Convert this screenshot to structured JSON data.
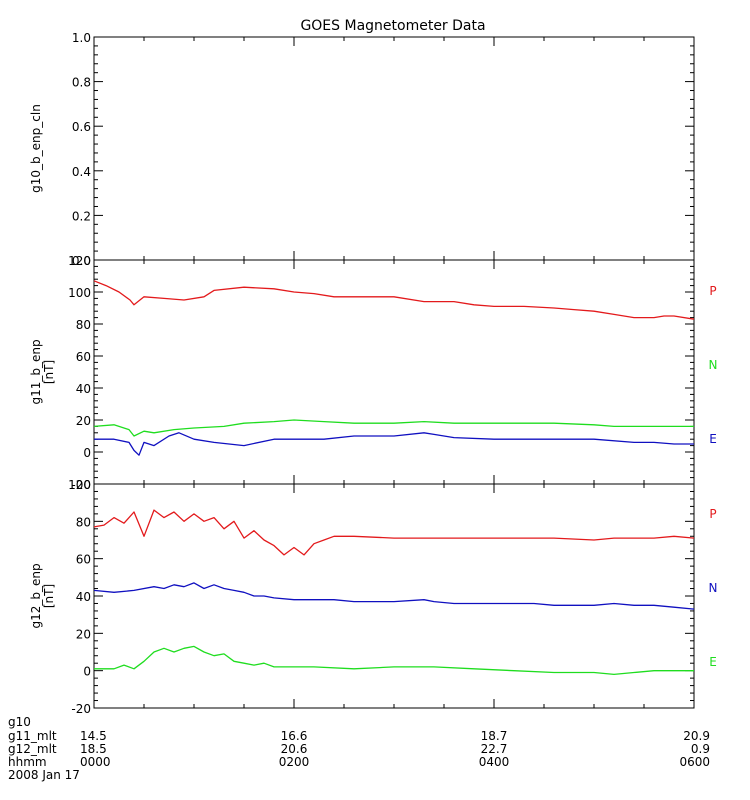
{
  "title": "GOES Magnetometer Data",
  "colors": {
    "P": "#e31a1c",
    "N": "#1fdd1f",
    "E": "#1010c0",
    "axis": "#000000"
  },
  "chart_data": [
    {
      "type": "line",
      "ylabel": "g10_b_enp_cln",
      "unit": "",
      "ylim": [
        0.0,
        1.0
      ],
      "yticks": [
        "0.0",
        "0.2",
        "0.4",
        "0.6",
        "0.8",
        "1.0"
      ],
      "ytick_values": [
        0.0,
        0.2,
        0.4,
        0.6,
        0.8,
        1.0
      ],
      "legend": [],
      "series": []
    },
    {
      "type": "line",
      "ylabel": "g11_b_enp",
      "unit": "[nT]",
      "ylim": [
        -20,
        120
      ],
      "yticks": [
        "-20",
        "0",
        "20",
        "40",
        "60",
        "80",
        "100",
        "120"
      ],
      "ytick_values": [
        -20,
        0,
        20,
        40,
        60,
        80,
        100,
        120
      ],
      "legend": [
        "P",
        "N",
        "E"
      ],
      "series": [
        {
          "name": "P",
          "color": "#e31a1c",
          "x": [
            0,
            12,
            25,
            36,
            40,
            50,
            70,
            90,
            110,
            120,
            150,
            180,
            200,
            220,
            240,
            260,
            280,
            300,
            330,
            360,
            380,
            400,
            430,
            460,
            480,
            500,
            520,
            540,
            560,
            570,
            580,
            600
          ],
          "y": [
            107,
            104,
            100,
            95,
            92,
            97,
            96,
            95,
            97,
            101,
            103,
            102,
            100,
            99,
            97,
            97,
            97,
            97,
            94,
            94,
            92,
            91,
            91,
            90,
            89,
            88,
            86,
            84,
            84,
            85,
            85,
            83
          ]
        },
        {
          "name": "N",
          "color": "#1fdd1f",
          "x": [
            0,
            20,
            35,
            40,
            50,
            60,
            80,
            100,
            130,
            150,
            180,
            200,
            230,
            260,
            300,
            330,
            360,
            390,
            430,
            460,
            500,
            520,
            540,
            570,
            600
          ],
          "y": [
            16,
            17,
            14,
            10,
            13,
            12,
            14,
            15,
            16,
            18,
            19,
            20,
            19,
            18,
            18,
            19,
            18,
            18,
            18,
            18,
            17,
            16,
            16,
            16,
            16
          ]
        },
        {
          "name": "E",
          "color": "#1010c0",
          "x": [
            0,
            20,
            35,
            40,
            45,
            50,
            60,
            75,
            85,
            100,
            120,
            150,
            180,
            200,
            230,
            260,
            300,
            330,
            340,
            360,
            400,
            430,
            460,
            500,
            540,
            560,
            580,
            600
          ],
          "y": [
            8,
            8,
            6,
            1,
            -2,
            6,
            4,
            10,
            12,
            8,
            6,
            4,
            8,
            8,
            8,
            10,
            10,
            12,
            11,
            9,
            8,
            8,
            8,
            8,
            6,
            6,
            5,
            5
          ]
        }
      ]
    },
    {
      "type": "line",
      "ylabel": "g12_b_enp",
      "unit": "[nT]",
      "ylim": [
        -20,
        100
      ],
      "yticks": [
        "-20",
        "0",
        "20",
        "40",
        "60",
        "80",
        "100"
      ],
      "ytick_values": [
        -20,
        0,
        20,
        40,
        60,
        80,
        100
      ],
      "legend": [
        "P",
        "N",
        "E"
      ],
      "series": [
        {
          "name": "P",
          "color": "#e31a1c",
          "x": [
            0,
            10,
            20,
            30,
            40,
            50,
            60,
            70,
            80,
            90,
            100,
            110,
            120,
            130,
            140,
            150,
            160,
            170,
            180,
            190,
            200,
            210,
            220,
            230,
            240,
            260,
            300,
            340,
            380,
            420,
            460,
            500,
            520,
            540,
            560,
            580,
            600
          ],
          "y": [
            77,
            78,
            82,
            79,
            85,
            72,
            86,
            82,
            85,
            80,
            84,
            80,
            82,
            76,
            80,
            71,
            75,
            70,
            67,
            62,
            66,
            62,
            68,
            70,
            72,
            72,
            71,
            71,
            71,
            71,
            71,
            70,
            71,
            71,
            71,
            72,
            71
          ]
        },
        {
          "name": "N",
          "color": "#1010c0",
          "x": [
            0,
            20,
            40,
            60,
            70,
            80,
            90,
            100,
            110,
            120,
            130,
            140,
            150,
            160,
            170,
            180,
            200,
            220,
            240,
            260,
            300,
            330,
            340,
            360,
            380,
            400,
            440,
            460,
            480,
            500,
            520,
            540,
            560,
            580,
            600
          ],
          "y": [
            43,
            42,
            43,
            45,
            44,
            46,
            45,
            47,
            44,
            46,
            44,
            43,
            42,
            40,
            40,
            39,
            38,
            38,
            38,
            37,
            37,
            38,
            37,
            36,
            36,
            36,
            36,
            35,
            35,
            35,
            36,
            35,
            35,
            34,
            33
          ]
        },
        {
          "name": "E",
          "color": "#1fdd1f",
          "x": [
            0,
            20,
            30,
            40,
            50,
            60,
            70,
            80,
            90,
            100,
            110,
            120,
            130,
            140,
            150,
            160,
            170,
            180,
            200,
            220,
            260,
            300,
            340,
            380,
            420,
            460,
            500,
            520,
            540,
            560,
            580,
            600
          ],
          "y": [
            1,
            1,
            3,
            1,
            5,
            10,
            12,
            10,
            12,
            13,
            10,
            8,
            9,
            5,
            4,
            3,
            4,
            2,
            2,
            2,
            1,
            2,
            2,
            1,
            0,
            -1,
            -1,
            -2,
            -1,
            0,
            0,
            0
          ]
        }
      ]
    }
  ],
  "x_axis": {
    "xlim": [
      0,
      600
    ],
    "tick_values": [
      0,
      200,
      400,
      600
    ],
    "rows": [
      {
        "label": "g10",
        "values": [
          "",
          "",
          "",
          ""
        ]
      },
      {
        "label": "g11_mlt",
        "values": [
          "14.5",
          "16.6",
          "18.7",
          "20.9"
        ]
      },
      {
        "label": "g12_mlt",
        "values": [
          "18.5",
          "20.6",
          "22.7",
          "0.9"
        ]
      },
      {
        "label": "hhmm",
        "values": [
          "0000",
          "0200",
          "0400",
          "0600"
        ]
      }
    ],
    "date": "2008 Jan 17"
  }
}
